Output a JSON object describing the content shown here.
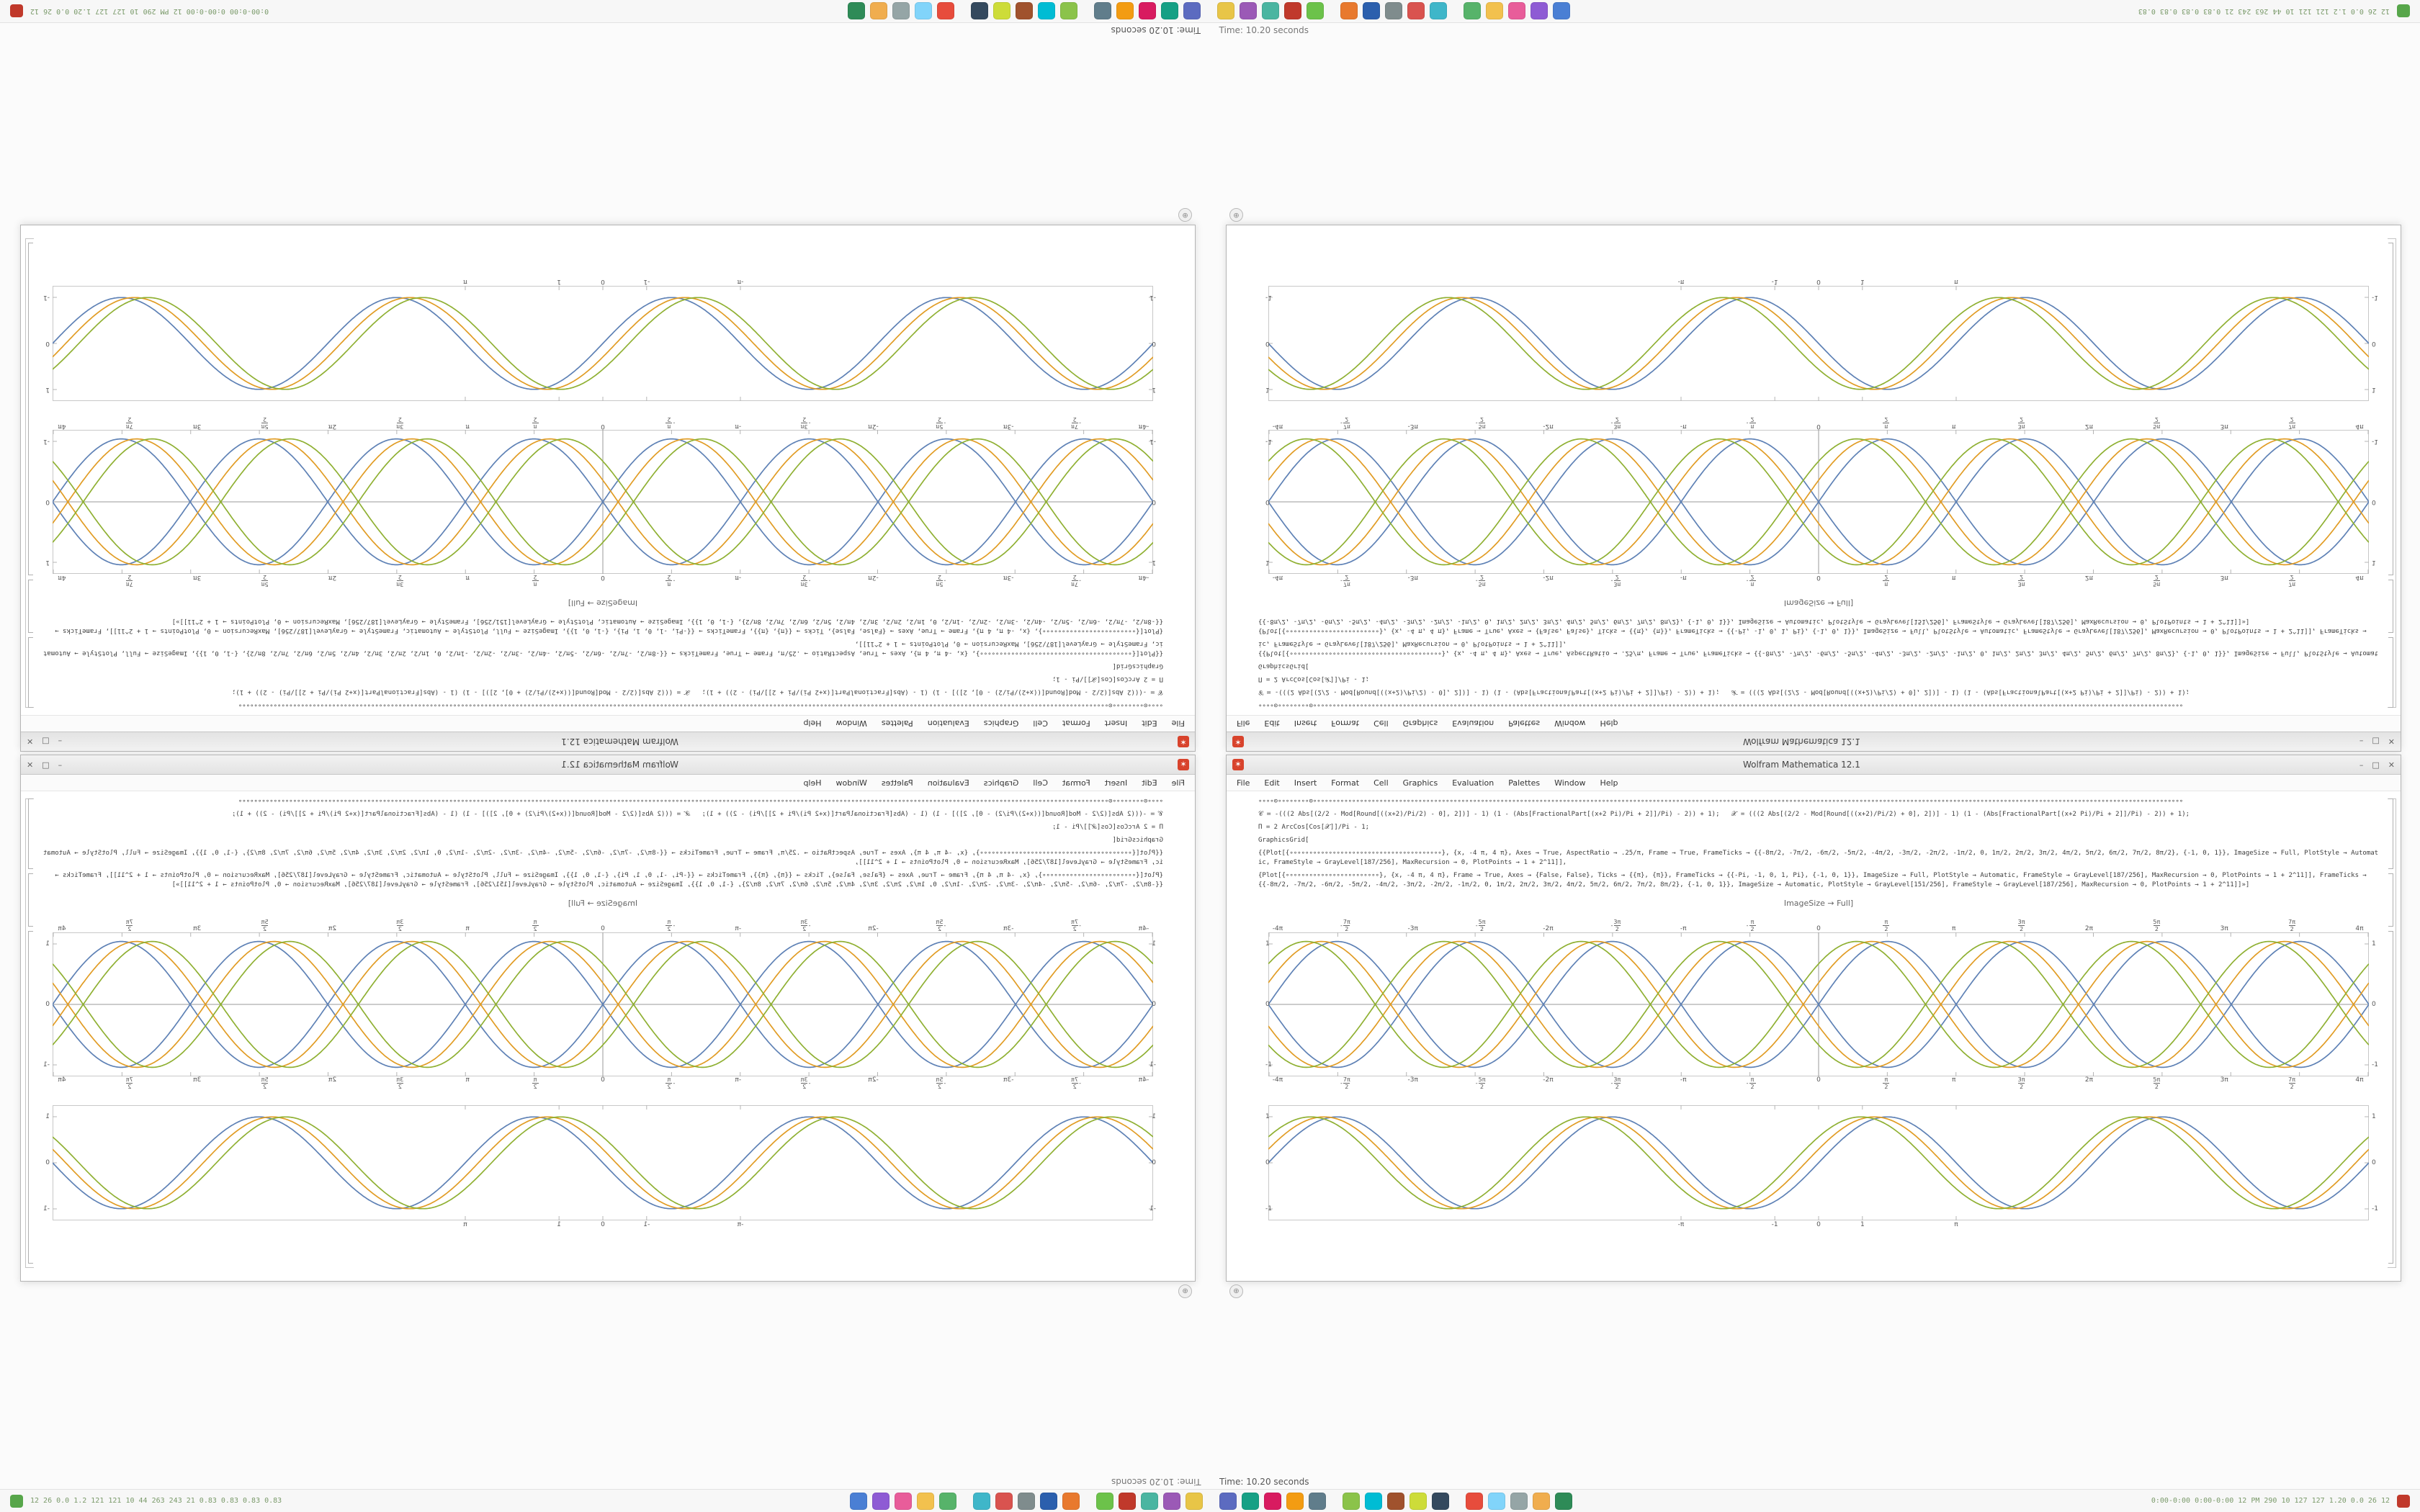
{
  "desktop": {
    "background": "#fbfbfb"
  },
  "taskbar": {
    "active_window_label": "Time: 10.20 seconds",
    "sysmon_left": "12 26 0.0 1.2 121 121 10 44 263 243 21 0.83 0.83 0.83 0.83",
    "sysmon_right": "0:00-0:00 0:00-0:00 12 PM 290 10 127 127 1.20 0.0 26 12",
    "icons": [
      {
        "color": "#4a7fd4"
      },
      {
        "color": "#8e5bd4"
      },
      {
        "color": "#e85d9a"
      },
      {
        "color": "#f2c14e"
      },
      {
        "color": "#57b36a"
      },
      {
        "color": "#3fb6c9"
      },
      {
        "color": "#d9534f"
      },
      {
        "color": "#7f8c8d"
      },
      {
        "color": "#2b5fad"
      },
      {
        "color": "#e8792e"
      },
      {
        "color": "#6cc24a"
      },
      {
        "color": "#c0392b"
      },
      {
        "color": "#4ab5a1"
      },
      {
        "color": "#9b59b6"
      },
      {
        "color": "#e8c547"
      },
      {
        "color": "#5c6bc0"
      },
      {
        "color": "#16a085"
      },
      {
        "color": "#d81b60"
      },
      {
        "color": "#f39c12"
      },
      {
        "color": "#607d8b"
      },
      {
        "color": "#8bc34a"
      },
      {
        "color": "#00bcd4"
      },
      {
        "color": "#a0522d"
      },
      {
        "color": "#cddc39"
      },
      {
        "color": "#34495e"
      },
      {
        "color": "#e74c3c"
      },
      {
        "color": "#81d4fa"
      },
      {
        "color": "#95a5a6"
      },
      {
        "color": "#f0ad4e"
      },
      {
        "color": "#2e8b57"
      }
    ],
    "left_end_icon_color": "#57a64a",
    "right_end_icon_color": "#c0392b"
  },
  "window": {
    "title": "Wolfram Mathematica 12.1",
    "app_icon_glyph": "✶",
    "controls": [
      "–",
      "□",
      "✕"
    ],
    "menu": [
      "File",
      "Edit",
      "Insert",
      "Format",
      "Cell",
      "Graphics",
      "Evaluation",
      "Palettes",
      "Window",
      "Help"
    ],
    "cells": [
      "∘∘∘∘⊙∘∘∘∘∘∘∘∘⊙∘∘∘∘∘∘∘∘∘∘∘∘∘∘∘∘∘∘∘∘∘∘∘∘∘∘∘∘∘∘∘∘∘∘∘∘∘∘∘∘∘∘∘∘∘∘∘∘∘∘∘∘∘∘∘∘∘∘∘∘∘∘∘∘∘∘∘∘∘∘∘∘∘∘∘∘∘∘∘∘∘∘∘∘∘∘∘∘∘∘∘∘∘∘∘∘∘∘∘∘∘∘∘∘∘∘∘∘∘∘∘∘∘∘∘∘∘∘∘∘∘∘∘∘∘∘∘∘∘∘∘∘∘∘∘∘∘∘∘∘∘∘∘∘∘∘∘∘∘∘∘∘∘∘∘∘∘∘∘∘∘∘∘∘∘∘∘∘∘∘∘∘∘∘∘∘∘∘∘∘∘∘∘∘∘∘∘∘∘∘∘∘∘∘∘∘∘∘∘∘∘∘∘∘∘∘∘∘∘∘∘∘∘∘∘∘∘∘∘∘∘∘∘",
      "𝒞 ≔ -(((2 Abs[(2/2 - Mod[Round[((x+2)/Pi/2) - 0], 2])] - 1) (1 - (Abs[FractionalPart[(x+2 Pi)/Pi + 2]]/Pi) - 2)) + 1);   𝒳 = (((2 Abs[(2/2 - Mod[Round[((x+2)/Pi/2) + 0], 2])] - 1) (1 - (Abs[FractionalPart[(x+2 Pi)/Pi + 2]]/Pi) - 2)) + 1);",
      "Π = 2 ArcCos[Cos[𝒳]]/Pi - 1;",
      "GraphicsGrid[",
      "{{Plot[{∘∘∘∘∘∘∘∘∘∘∘∘∘∘∘∘∘∘∘∘∘∘∘∘∘∘∘∘∘∘∘∘∘∘∘∘∘∘∘}, {x, -4 π, 4 π}, Axes → True, AspectRatio → .25/π, Frame → True, FrameTicks → {{-8π/2, -7π/2, -6π/2, -5π/2, -4π/2, -3π/2, -2π/2, -1π/2, 0, 1π/2, 2π/2, 3π/2, 4π/2, 5π/2, 6π/2, 7π/2, 8π/2}, {-1, 0, 1}}, ImageSize → Full, PlotStyle → Automatic, FrameStyle → GrayLevel[187/256], MaxRecursion → 0, PlotPoints → 1 + 2^11]],",
      "{Plot[{∘∘∘∘∘∘∘∘∘∘∘∘∘∘∘∘∘∘∘∘∘∘∘∘}, {x, -4 π, 4 π}, Frame → True, Axes → {False, False}, Ticks → {{π}, {π}}, FrameTicks → {{-Pi, -1, 0, 1, Pi}, {-1, 0, 1}}, ImageSize → Full, PlotStyle → Automatic, FrameStyle → GrayLevel[187/256], MaxRecursion → 0, PlotPoints → 1 + 2^11]], FrameTicks → {{-8π/2, -7π/2, -6π/2, -5π/2, -4π/2, -3π/2, -2π/2, -1π/2, 0, 1π/2, 2π/2, 3π/2, 4π/2, 5π/2, 6π/2, 7π/2, 8π/2}, {-1, 0, 1}}, ImageSize → Automatic, PlotStyle → GrayLevel[151/256], FrameStyle → GrayLevel[187/256], MaxRecursion → 0, PlotPoints → 1 + 2^11]]»]"
    ],
    "caption": "ImageSize → Full]",
    "corner_badge_glyph": "⊕"
  },
  "chart_data": [
    {
      "id": "petal-plot",
      "type": "line",
      "title": "",
      "xlabel": "",
      "ylabel": "",
      "x_range": [
        -12.566,
        12.566
      ],
      "ylim": [
        -1,
        1
      ],
      "frame": true,
      "axes": true,
      "grid": false,
      "legend": "none",
      "amplitude": 0.92,
      "period": "2π",
      "x_tick_labels": [
        "-4π",
        "-7π/2",
        "-3π",
        "-5π/2",
        "-2π",
        "-3π/2",
        "-π",
        "-π/2",
        "0",
        "π/2",
        "π",
        "3π/2",
        "2π",
        "5π/2",
        "3π",
        "7π/2",
        "4π"
      ],
      "y_ticks": [
        {
          "label": "1",
          "pos": 0.08
        },
        {
          "label": "0",
          "pos": 0.5
        },
        {
          "label": "-1",
          "pos": 0.92
        }
      ],
      "series": [
        {
          "name": "sin(x)",
          "color": "#5E81B5",
          "phase": 0,
          "sign": 1
        },
        {
          "name": "-sin(x)",
          "color": "#5E81B5",
          "phase": 0,
          "sign": -1
        },
        {
          "name": "sin(x+0.35)",
          "color": "#E19C24",
          "phase": 0.35,
          "sign": 1
        },
        {
          "name": "-sin(x+0.35)",
          "color": "#E19C24",
          "phase": 0.35,
          "sign": -1
        },
        {
          "name": "sin(x+0.7)",
          "color": "#8FB032",
          "phase": 0.7,
          "sign": 1
        },
        {
          "name": "-sin(x+0.7)",
          "color": "#8FB032",
          "phase": 0.7,
          "sign": -1
        }
      ]
    },
    {
      "id": "framed-sine-plot",
      "type": "line",
      "title": "",
      "xlabel": "",
      "ylabel": "",
      "x_range": [
        -12.566,
        12.566
      ],
      "ylim": [
        -1,
        1
      ],
      "frame": true,
      "axes": false,
      "grid": false,
      "legend": "none",
      "amplitude": 0.85,
      "period": "2π",
      "x_ticks": [
        {
          "label": "-π",
          "pos": 0.375
        },
        {
          "label": "-1",
          "pos": 0.4602
        },
        {
          "label": "0",
          "pos": 0.5
        },
        {
          "label": "1",
          "pos": 0.5398
        },
        {
          "label": "π",
          "pos": 0.625
        }
      ],
      "y_ticks": [
        {
          "label": "1",
          "pos": 0.1
        },
        {
          "label": "0",
          "pos": 0.5
        },
        {
          "label": "-1",
          "pos": 0.9
        }
      ],
      "series": [
        {
          "name": "sin(x)",
          "color": "#5E81B5",
          "phase": 0,
          "sign": 1
        },
        {
          "name": "sin(x+0.3)",
          "color": "#E19C24",
          "phase": 0.3,
          "sign": 1
        },
        {
          "name": "sin(x+0.6)",
          "color": "#8FB032",
          "phase": 0.6,
          "sign": 1
        }
      ]
    }
  ]
}
